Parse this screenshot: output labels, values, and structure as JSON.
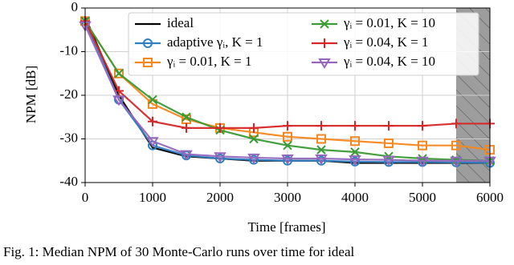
{
  "chart_data": {
    "type": "line",
    "xlabel": "Time [frames]",
    "ylabel": "NPM [dB]",
    "x": [
      0,
      500,
      1000,
      1500,
      2000,
      2500,
      3000,
      3500,
      4000,
      4500,
      5000,
      5500,
      6000
    ],
    "series": [
      {
        "name": "ideal",
        "color": "#000000",
        "marker": "none",
        "values": [
          -2,
          -20,
          -32,
          -34,
          -34.5,
          -35,
          -35,
          -35,
          -35.5,
          -35.5,
          -35.5,
          -35.5,
          -35.5
        ]
      },
      {
        "name": "adaptive γᵢ, K = 1",
        "color": "#2f7fc1",
        "marker": "o",
        "values": [
          -3,
          -21,
          -31.5,
          -33.8,
          -34.5,
          -34.8,
          -35,
          -35,
          -35.2,
          -35.3,
          -35.3,
          -35.4,
          -35.5
        ]
      },
      {
        "name": "γᵢ = 0.01, K = 1",
        "color": "#f5871f",
        "marker": "s",
        "values": [
          -3,
          -15,
          -22,
          -25.5,
          -27.5,
          -28.5,
          -29.5,
          -30,
          -30.5,
          -31,
          -31.5,
          -31.5,
          -32.5
        ]
      },
      {
        "name": "γᵢ = 0.01, K = 10",
        "color": "#3a9b34",
        "marker": "x",
        "values": [
          -3,
          -15,
          -21,
          -25,
          -28,
          -30,
          -31.5,
          -32.5,
          -33,
          -34,
          -34.5,
          -34.8,
          -35
        ]
      },
      {
        "name": "γᵢ = 0.04, K = 1",
        "color": "#d62728",
        "marker": "+",
        "values": [
          -3,
          -19,
          -26,
          -27.5,
          -27.5,
          -27.5,
          -27,
          -27,
          -27,
          -27,
          -27,
          -26.5,
          -26.5
        ]
      },
      {
        "name": "γᵢ = 0.04, K = 10",
        "color": "#9467bd",
        "marker": "v",
        "values": [
          -4,
          -21,
          -30.5,
          -33.5,
          -34,
          -34.3,
          -34.5,
          -34.5,
          -34.7,
          -34.8,
          -35,
          -35,
          -35
        ]
      }
    ],
    "shaded_xrange": [
      5500,
      6000
    ],
    "xlim": [
      0,
      6000
    ],
    "xticks": [
      0,
      1000,
      2000,
      3000,
      4000,
      5000,
      6000
    ],
    "ylim": [
      -40,
      0
    ],
    "yticks": [
      -40,
      -30,
      -20,
      -10,
      0
    ],
    "grid": true,
    "caption": "Fig. 1: Median NPM of 30 Monte-Carlo runs over time for ideal"
  }
}
